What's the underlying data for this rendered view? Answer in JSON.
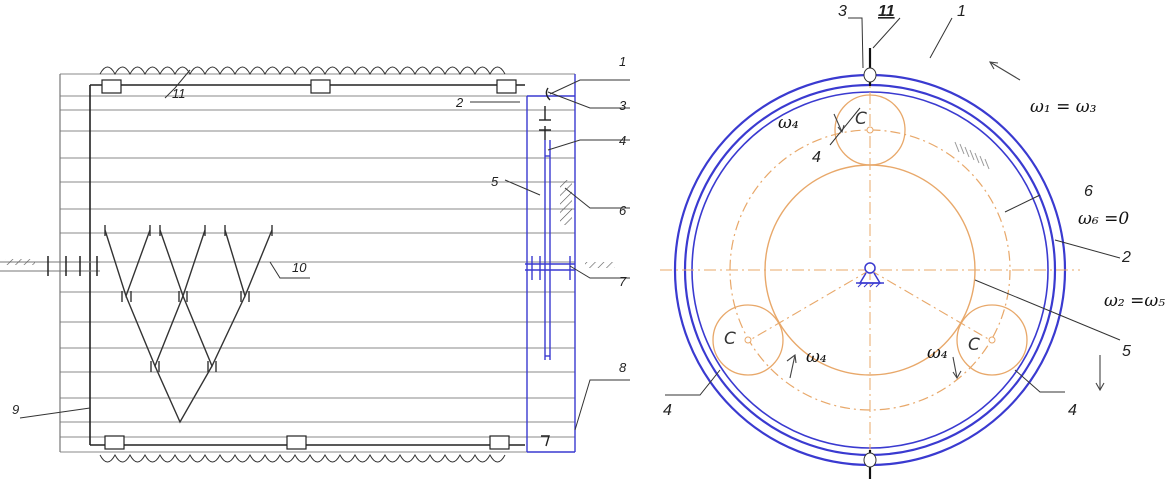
{
  "left_diagram": {
    "labels": {
      "l1": "1",
      "l2": "2",
      "l3": "3",
      "l4": "4",
      "l5": "5",
      "l6": "6",
      "l7": "7",
      "l8": "8",
      "l9": "9",
      "l10": "10",
      "l11": "11"
    }
  },
  "right_diagram": {
    "labels": {
      "l1": "1",
      "l2": "2",
      "l3": "3",
      "l4a": "4",
      "l4b": "4",
      "l4c": "4",
      "l5": "5",
      "l6": "6",
      "l11": "11"
    },
    "carrier_marks": {
      "c_top": "C",
      "c_left": "C",
      "c_right": "C"
    },
    "equations": {
      "w13": "ω₁ = ω₃",
      "w6": "ω₆ =0",
      "w25": "ω₂ =ω₅",
      "w4_top": "ω₄",
      "w4_left": "ω₄",
      "w4_right": "ω₄"
    }
  },
  "colors": {
    "frame_blue": "#3a3ad0",
    "line_gray": "#777777",
    "orange": "#e8a86a",
    "ink": "#222222"
  }
}
